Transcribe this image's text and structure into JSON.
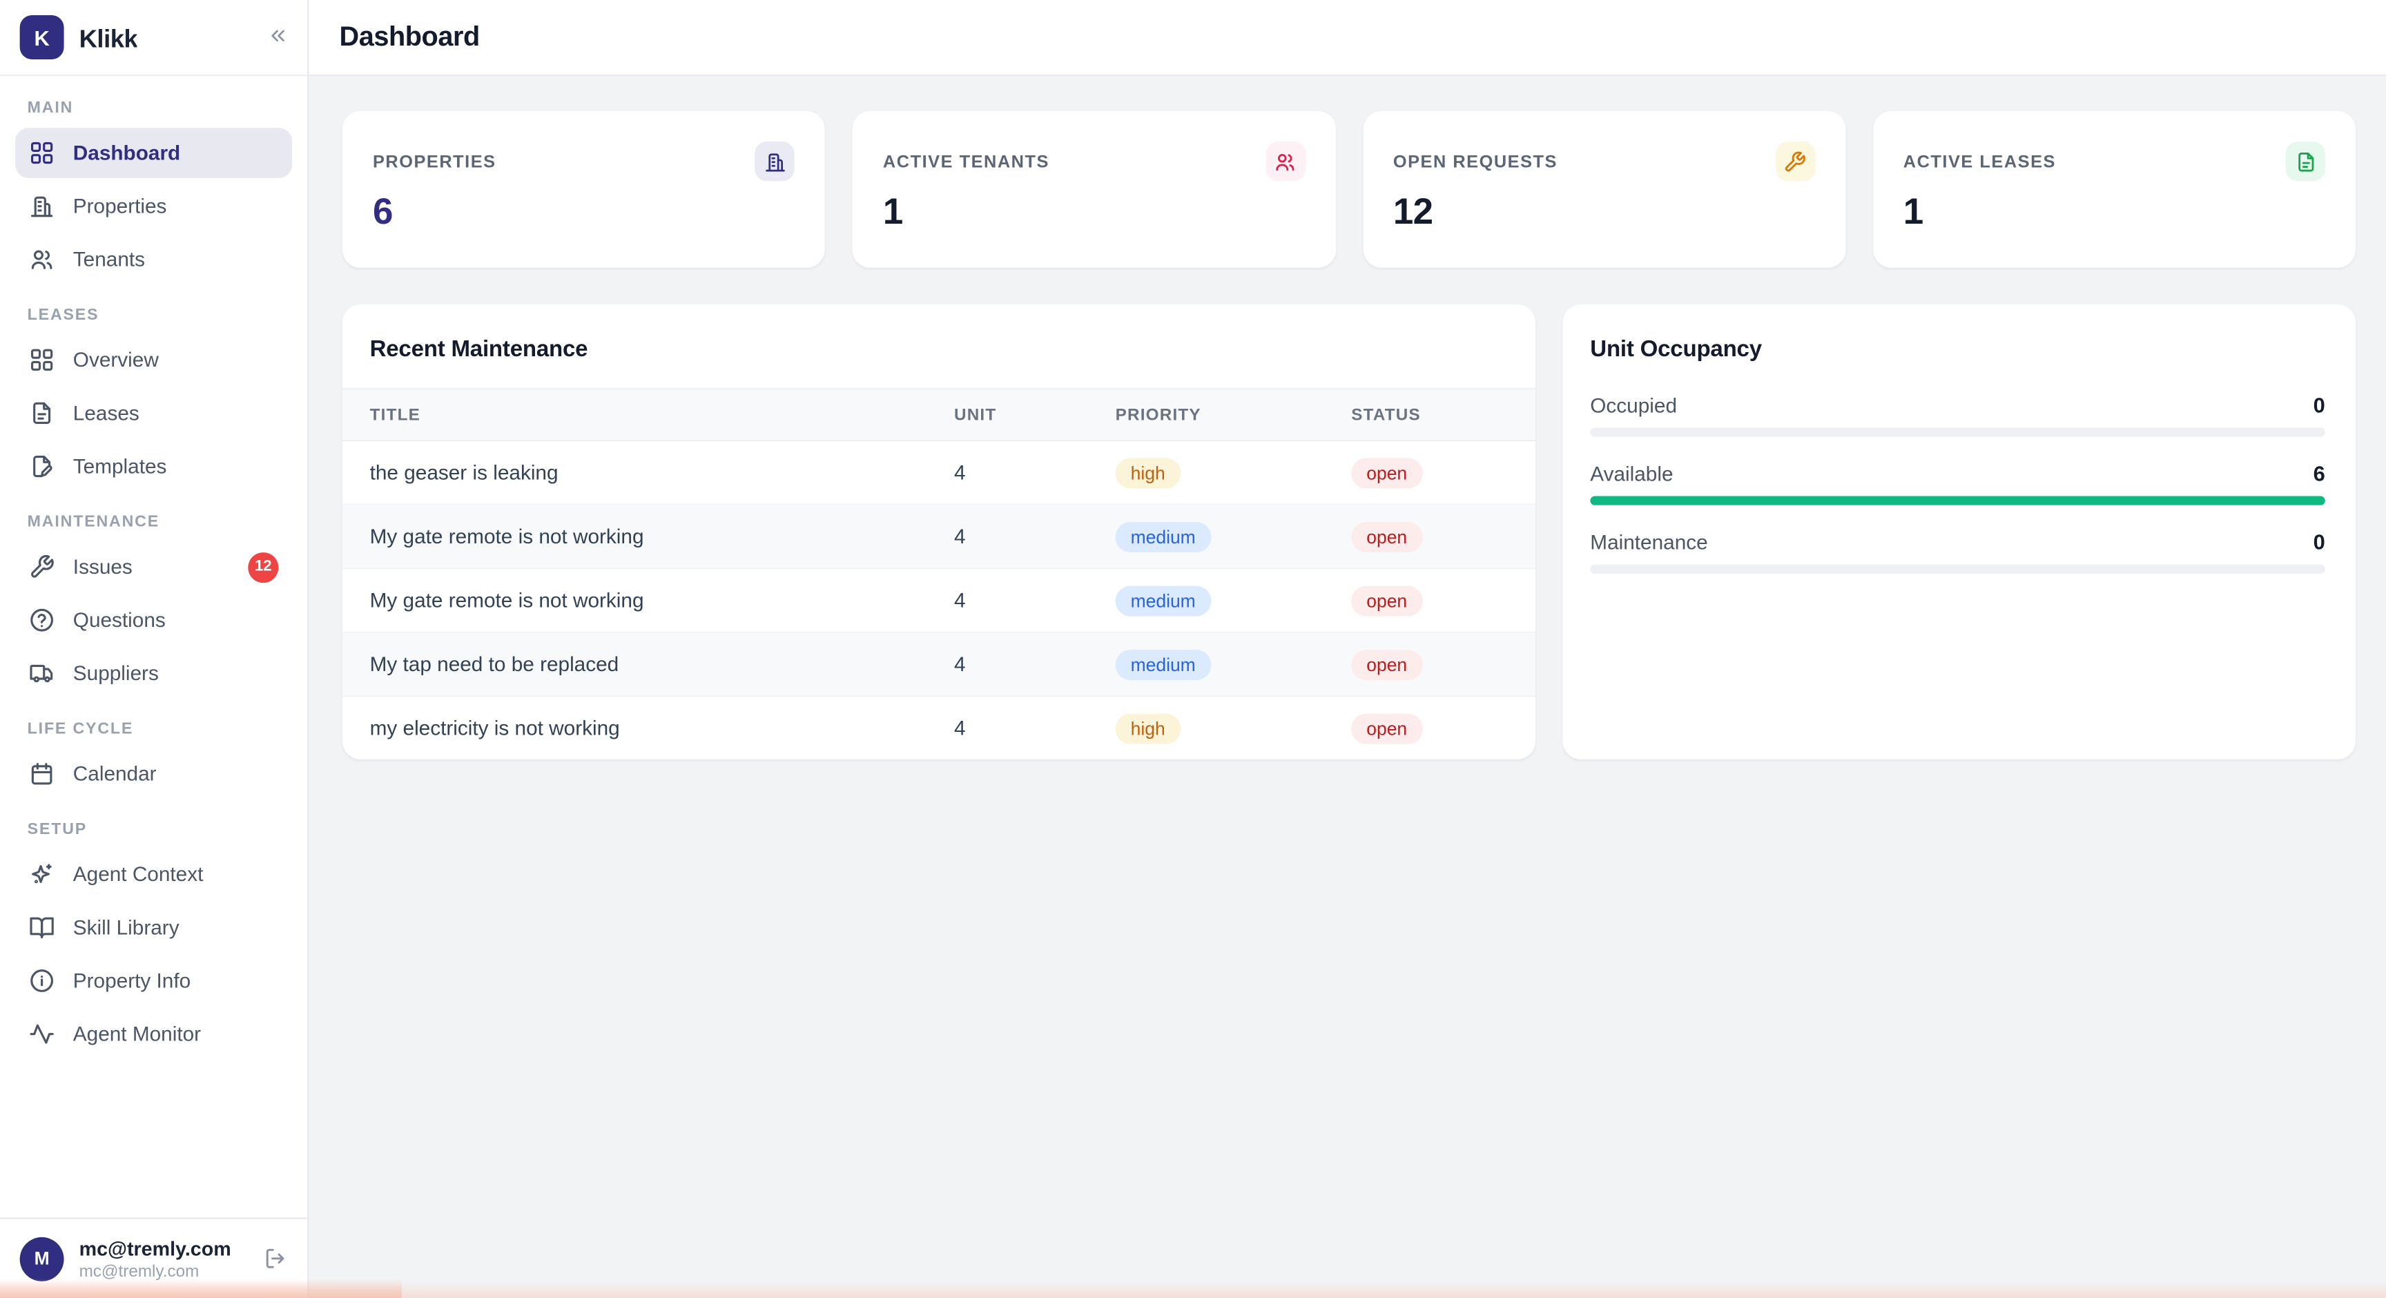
{
  "brand": {
    "name": "Klikk",
    "initial": "K"
  },
  "header": {
    "title": "Dashboard"
  },
  "sidebar": {
    "sections": [
      {
        "label": "MAIN",
        "items": [
          {
            "label": "Dashboard",
            "icon": "layout-grid",
            "active": true
          },
          {
            "label": "Properties",
            "icon": "building"
          },
          {
            "label": "Tenants",
            "icon": "users"
          }
        ]
      },
      {
        "label": "LEASES",
        "items": [
          {
            "label": "Overview",
            "icon": "layout-grid"
          },
          {
            "label": "Leases",
            "icon": "file-text"
          },
          {
            "label": "Templates",
            "icon": "file-pen"
          }
        ]
      },
      {
        "label": "MAINTENANCE",
        "items": [
          {
            "label": "Issues",
            "icon": "wrench",
            "badge": "12"
          },
          {
            "label": "Questions",
            "icon": "help-circle"
          },
          {
            "label": "Suppliers",
            "icon": "truck"
          }
        ]
      },
      {
        "label": "LIFE CYCLE",
        "items": [
          {
            "label": "Calendar",
            "icon": "calendar"
          }
        ]
      },
      {
        "label": "SETUP",
        "items": [
          {
            "label": "Agent Context",
            "icon": "sparkles"
          },
          {
            "label": "Skill Library",
            "icon": "book-open"
          },
          {
            "label": "Property Info",
            "icon": "info"
          },
          {
            "label": "Agent Monitor",
            "icon": "activity"
          }
        ]
      }
    ],
    "user": {
      "name": "mc@tremly.com",
      "email": "mc@tremly.com",
      "initial": "M"
    }
  },
  "stats": [
    {
      "label": "PROPERTIES",
      "value": "6",
      "icon": "building",
      "value_color": "#312e81",
      "icon_color": "#312e81",
      "icon_bg": "#e9eaf3"
    },
    {
      "label": "ACTIVE TENANTS",
      "value": "1",
      "icon": "users",
      "value_color": "#141b2d",
      "icon_color": "#e11d48",
      "icon_bg": "#fdf1f5"
    },
    {
      "label": "OPEN REQUESTS",
      "value": "12",
      "icon": "wrench",
      "value_color": "#141b2d",
      "icon_color": "#d97706",
      "icon_bg": "#fcf7df"
    },
    {
      "label": "ACTIVE LEASES",
      "value": "1",
      "icon": "file-text",
      "value_color": "#141b2d",
      "icon_color": "#16a34a",
      "icon_bg": "#e7f8ee"
    }
  ],
  "maintenance": {
    "title": "Recent Maintenance",
    "columns": [
      "TITLE",
      "UNIT",
      "PRIORITY",
      "STATUS"
    ],
    "rows": [
      {
        "title": "the geaser is leaking",
        "unit": "4",
        "priority": "high",
        "status": "open"
      },
      {
        "title": "My gate remote is not working",
        "unit": "4",
        "priority": "medium",
        "status": "open"
      },
      {
        "title": "My gate remote is not working",
        "unit": "4",
        "priority": "medium",
        "status": "open"
      },
      {
        "title": "My tap need to be replaced",
        "unit": "4",
        "priority": "medium",
        "status": "open"
      },
      {
        "title": "my electricity is not working",
        "unit": "4",
        "priority": "high",
        "status": "open"
      }
    ]
  },
  "occupancy": {
    "title": "Unit Occupancy",
    "rows": [
      {
        "label": "Occupied",
        "value": 0,
        "max": 6,
        "color": "#10b981"
      },
      {
        "label": "Available",
        "value": 6,
        "max": 6,
        "color": "#10b981"
      },
      {
        "label": "Maintenance",
        "value": 0,
        "max": 6,
        "color": "#10b981"
      }
    ]
  },
  "pill_styles": {
    "high": {
      "fg": "#c2610c",
      "bg": "#fcf4d9"
    },
    "medium": {
      "fg": "#2563eb",
      "bg": "#dbeafe"
    },
    "open": {
      "fg": "#b91c1c",
      "bg": "#fdecec"
    }
  },
  "colors": {
    "accent_indigo": "#312e81",
    "badge_red": "#ef4444",
    "occupancy_green": "#10b981",
    "page_background": "#f2f3f5"
  }
}
